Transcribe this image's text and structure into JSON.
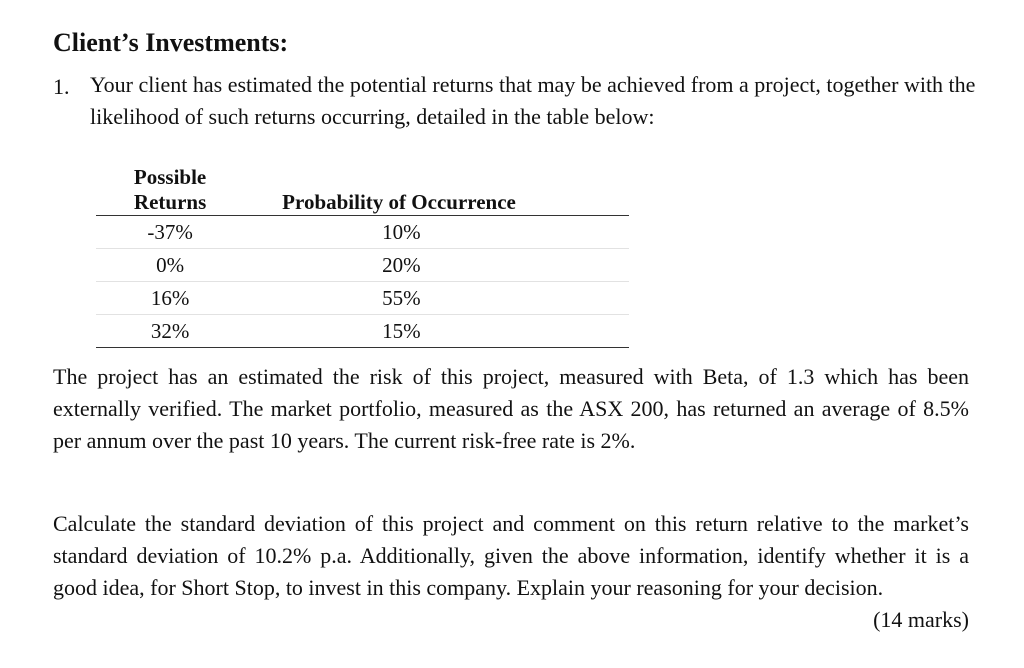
{
  "heading": "Client’s Investments:",
  "question": {
    "number": "1.",
    "text": "Your client has estimated the potential returns that may be achieved from a project, together with the likelihood of such returns occurring, detailed in the table below:"
  },
  "table": {
    "headers": [
      "Possible Returns",
      "Probability of Occurrence"
    ],
    "rows": [
      [
        "-37%",
        "10%"
      ],
      [
        "0%",
        "20%"
      ],
      [
        "16%",
        "55%"
      ],
      [
        "32%",
        "15%"
      ]
    ]
  },
  "paragraph_1": "The project has an estimated the risk of this project, measured with Beta, of 1.3 which has been externally verified. The market portfolio, measured as the ASX 200, has returned an average of 8.5% per annum over the past 10 years. The current risk-free rate is 2%.",
  "paragraph_2": "Calculate the standard deviation of this project and comment on this return relative to the market’s standard deviation of 10.2% p.a. Additionally, given the above information, identify whether it is a good idea, for Short Stop, to invest in this company. Explain your reasoning for your decision.",
  "marks": "(14 marks)"
}
